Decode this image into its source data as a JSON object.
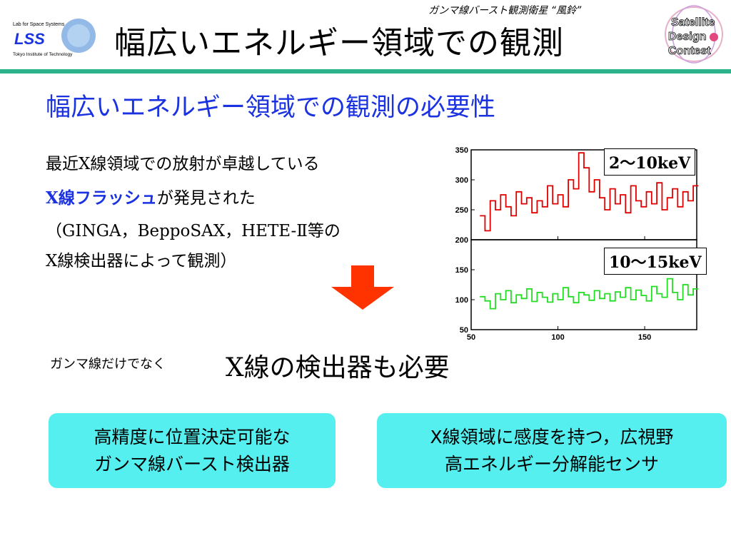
{
  "header": {
    "logo_lines": [
      "Lab for Space Systems",
      "LSS",
      "Tokyo Institute of Technology"
    ],
    "subtitle": "ガンマ線バースト観測衛星 “風鈴”",
    "title": "幅広いエネルギー領域での観測",
    "contest_logo_lines": [
      "Satellite",
      "Design",
      "Contest"
    ]
  },
  "section_heading": "幅広いエネルギー領域での観測の必要性",
  "body": {
    "line1": "最近X線領域での放射が卓越している",
    "line2_highlight": "X線フラッシュ",
    "line2_rest": "が発見された",
    "line3": "（GINGA，BeppoSAX，HETE-Ⅱ等の",
    "line4": "X線検出器によって観測）"
  },
  "conclusion": {
    "small": "ガンマ線だけでなく",
    "main": "X線の検出器も必要"
  },
  "boxes": {
    "left": [
      "高精度に位置決定可能な",
      "ガンマ線バースト検出器"
    ],
    "right": [
      "X線領域に感度を持つ，広視野",
      "高エネルギー分解能センサ"
    ]
  },
  "colors": {
    "title_blue": "#1a32e0",
    "rule_green": "#2bb28a",
    "box_cyan": "#55eff0",
    "arrow_red": "#ff3300",
    "series_red": "#e00000",
    "series_green": "#22dd22"
  },
  "chart_data": {
    "type": "line",
    "panels": [
      {
        "band_label": "2～10keV",
        "ylim": [
          200,
          350
        ],
        "yticks": [
          200,
          250,
          300,
          350
        ],
        "series_color": "#e00000"
      },
      {
        "band_label": "10～15keV",
        "ylim": [
          50,
          200
        ],
        "yticks": [
          50,
          100,
          150
        ],
        "series_color": "#22dd22"
      }
    ],
    "xlim": [
      50,
      180
    ],
    "xticks": [
      50,
      100,
      150
    ],
    "series": [
      {
        "panel": 0,
        "x": [
          55,
          58,
          61,
          64,
          67,
          70,
          73,
          76,
          79,
          82,
          85,
          88,
          91,
          94,
          97,
          100,
          103,
          106,
          109,
          112,
          115,
          118,
          121,
          124,
          127,
          130,
          133,
          136,
          139,
          142,
          145,
          148,
          151,
          154,
          157,
          160,
          163,
          166,
          169,
          172,
          175,
          178
        ],
        "values": [
          240,
          215,
          265,
          250,
          275,
          255,
          240,
          280,
          260,
          270,
          245,
          265,
          255,
          290,
          260,
          275,
          255,
          300,
          285,
          345,
          320,
          280,
          300,
          270,
          250,
          285,
          260,
          275,
          245,
          290,
          265,
          255,
          280,
          260,
          295,
          250,
          270,
          285,
          255,
          280,
          265,
          290
        ]
      },
      {
        "panel": 1,
        "x": [
          55,
          58,
          61,
          64,
          67,
          70,
          73,
          76,
          79,
          82,
          85,
          88,
          91,
          94,
          97,
          100,
          103,
          106,
          109,
          112,
          115,
          118,
          121,
          124,
          127,
          130,
          133,
          136,
          139,
          142,
          145,
          148,
          151,
          154,
          157,
          160,
          163,
          166,
          169,
          172,
          175,
          178
        ],
        "values": [
          105,
          98,
          85,
          110,
          100,
          115,
          95,
          108,
          102,
          118,
          97,
          112,
          104,
          96,
          110,
          100,
          120,
          105,
          95,
          112,
          108,
          99,
          115,
          102,
          110,
          98,
          113,
          104,
          120,
          100,
          116,
          107,
          98,
          122,
          110,
          104,
          135,
          112,
          100,
          125,
          108,
          118
        ]
      }
    ]
  }
}
